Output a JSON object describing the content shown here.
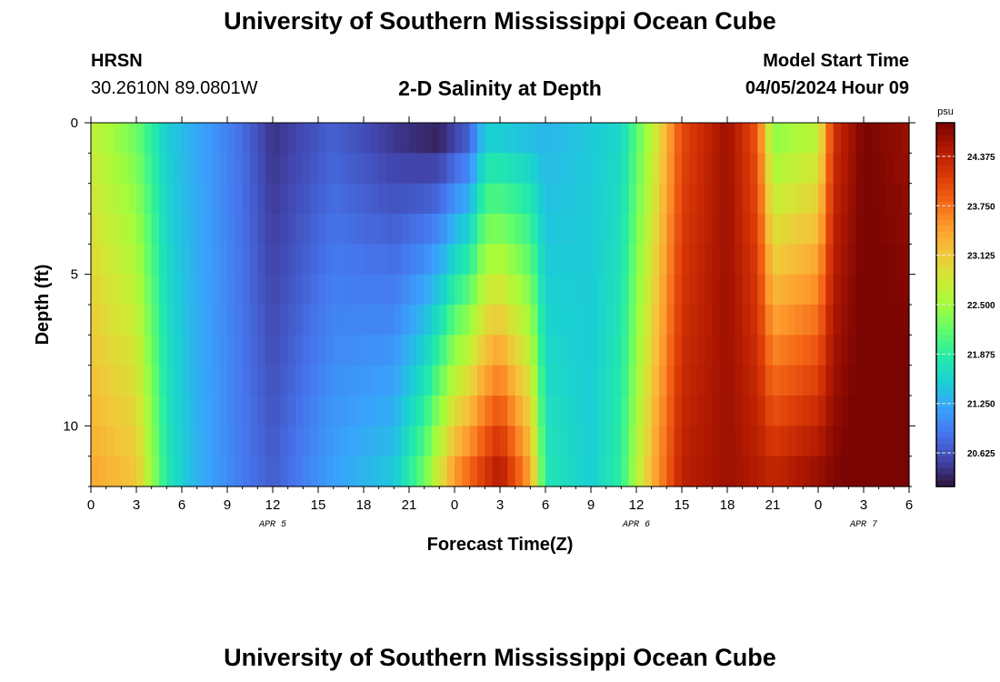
{
  "header": {
    "title": "University of Southern Mississippi Ocean Cube",
    "station": "HRSN",
    "coords": "30.2610N  89.0801W",
    "plot_title": "2-D Salinity at Depth",
    "model_label": "Model Start Time",
    "model_time": "04/05/2024 Hour 09"
  },
  "footer": {
    "title": "University of Southern Mississippi Ocean Cube"
  },
  "chart_data": {
    "type": "heatmap",
    "title": "2-D Salinity at Depth",
    "xlabel": "Forecast Time(Z)",
    "ylabel": "Depth (ft)",
    "x_range_hours": [
      0,
      54
    ],
    "x_tick_labels": [
      "0",
      "3",
      "6",
      "9",
      "12",
      "15",
      "18",
      "21",
      "0",
      "3",
      "6",
      "9",
      "12",
      "15",
      "18",
      "21",
      "0",
      "3",
      "6"
    ],
    "date_labels": [
      {
        "label": "APR 5",
        "hour": 12
      },
      {
        "label": "APR 6",
        "hour": 36
      },
      {
        "label": "APR 7",
        "hour": 51
      }
    ],
    "y_range_ft": [
      0,
      12
    ],
    "y_tick_labels": [
      "0",
      "5",
      "10"
    ],
    "colorbar": {
      "unit": "psu",
      "ticks": [
        "24.375",
        "23.750",
        "23.125",
        "22.500",
        "21.875",
        "21.250",
        "20.625"
      ],
      "range": [
        20.2,
        24.8
      ]
    },
    "surface_hour_values": [
      {
        "h": 0,
        "v": 22.7
      },
      {
        "h": 3,
        "v": 22.2
      },
      {
        "h": 5,
        "v": 21.5
      },
      {
        "h": 8,
        "v": 21.1
      },
      {
        "h": 10,
        "v": 20.8
      },
      {
        "h": 12,
        "v": 20.4
      },
      {
        "h": 16,
        "v": 20.7
      },
      {
        "h": 20,
        "v": 20.4
      },
      {
        "h": 23,
        "v": 20.2
      },
      {
        "h": 25,
        "v": 20.6
      },
      {
        "h": 26,
        "v": 21.4
      },
      {
        "h": 30,
        "v": 21.3
      },
      {
        "h": 35,
        "v": 21.6
      },
      {
        "h": 37,
        "v": 22.6
      },
      {
        "h": 39,
        "v": 24.0
      },
      {
        "h": 42,
        "v": 24.6
      },
      {
        "h": 44,
        "v": 23.9
      },
      {
        "h": 45,
        "v": 22.3
      },
      {
        "h": 48,
        "v": 22.6
      },
      {
        "h": 49,
        "v": 24.2
      },
      {
        "h": 51,
        "v": 24.8
      },
      {
        "h": 54,
        "v": 24.6
      }
    ],
    "bottom_hour_values": [
      {
        "h": 0,
        "v": 23.4
      },
      {
        "h": 3,
        "v": 23.2
      },
      {
        "h": 5,
        "v": 21.8
      },
      {
        "h": 7,
        "v": 21.3
      },
      {
        "h": 10,
        "v": 20.9
      },
      {
        "h": 12,
        "v": 20.7
      },
      {
        "h": 16,
        "v": 21.2
      },
      {
        "h": 20,
        "v": 21.5
      },
      {
        "h": 22,
        "v": 22.3
      },
      {
        "h": 24,
        "v": 23.6
      },
      {
        "h": 27,
        "v": 24.6
      },
      {
        "h": 29,
        "v": 23.5
      },
      {
        "h": 30,
        "v": 21.8
      },
      {
        "h": 33,
        "v": 21.5
      },
      {
        "h": 35,
        "v": 21.9
      },
      {
        "h": 37,
        "v": 23.3
      },
      {
        "h": 39,
        "v": 24.4
      },
      {
        "h": 42,
        "v": 24.6
      },
      {
        "h": 45,
        "v": 24.4
      },
      {
        "h": 48,
        "v": 24.7
      },
      {
        "h": 51,
        "v": 24.9
      },
      {
        "h": 54,
        "v": 24.9
      }
    ],
    "colormap": [
      "#30123b",
      "#4145ab",
      "#4675ed",
      "#39a2fc",
      "#1bcfd4",
      "#24eca6",
      "#61fc6c",
      "#a4fc3b",
      "#d1e834",
      "#f3c63a",
      "#fe9b2d",
      "#f36315",
      "#d93806",
      "#b11901",
      "#7a0402"
    ]
  }
}
